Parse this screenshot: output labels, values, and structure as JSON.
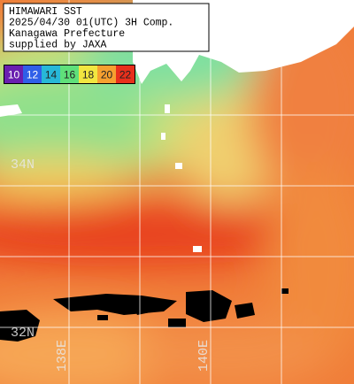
{
  "caption": {
    "lines": [
      "HIMAWARI SST",
      "2025/04/30 01(UTC) 3H Comp.",
      "Kanagawa Prefecture",
      "supplied by JAXA"
    ]
  },
  "legend": {
    "labels": [
      "10",
      "12",
      "14",
      "16",
      "18",
      "20",
      "22"
    ],
    "colors": [
      "#6a1fb0",
      "#2f5fe8",
      "#27b8d8",
      "#5fe07a",
      "#f2e640",
      "#f6a030",
      "#e8301c"
    ]
  },
  "grid": {
    "lat_labels": [
      "34N",
      "32N"
    ],
    "lon_labels": [
      "138E",
      "140E"
    ]
  }
}
